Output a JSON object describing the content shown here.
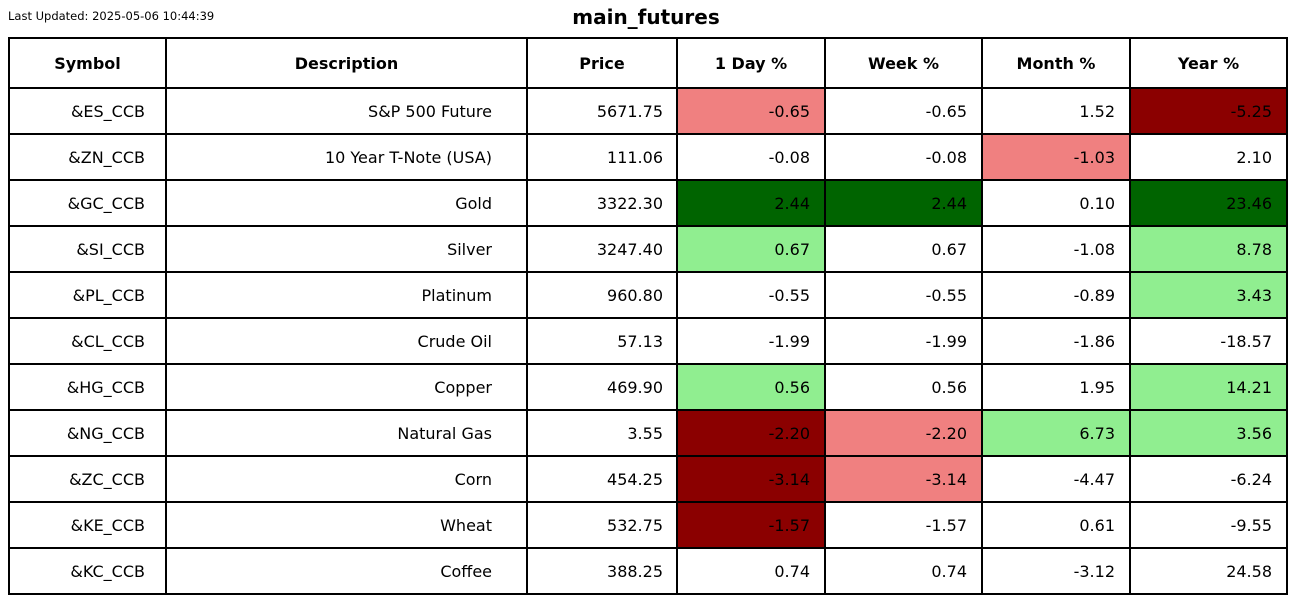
{
  "page": {
    "last_updated": "Last Updated: 2025-05-06 10:44:39"
  },
  "chart_data": {
    "type": "table",
    "title": "main_futures",
    "columns": [
      "Symbol",
      "Description",
      "Price",
      "1 Day %",
      "Week %",
      "Month %",
      "Year %"
    ],
    "cell_colors": {
      "positive_strong": "#006400",
      "positive_mild": "#90EE90",
      "negative_mild": "#F08080",
      "negative_strong": "#8B0000",
      "neutral": "#FFFFFF"
    },
    "rows": [
      {
        "symbol": "&ES_CCB",
        "description": "S&P 500 Future",
        "price": "5671.75",
        "day": {
          "value": "-0.65",
          "bg": "negative_mild"
        },
        "week": {
          "value": "-0.65",
          "bg": "neutral"
        },
        "month": {
          "value": "1.52",
          "bg": "neutral"
        },
        "year": {
          "value": "-5.25",
          "bg": "negative_strong"
        }
      },
      {
        "symbol": "&ZN_CCB",
        "description": "10 Year T-Note (USA)",
        "price": "111.06",
        "day": {
          "value": "-0.08",
          "bg": "neutral"
        },
        "week": {
          "value": "-0.08",
          "bg": "neutral"
        },
        "month": {
          "value": "-1.03",
          "bg": "negative_mild"
        },
        "year": {
          "value": "2.10",
          "bg": "neutral"
        }
      },
      {
        "symbol": "&GC_CCB",
        "description": "Gold",
        "price": "3322.30",
        "day": {
          "value": "2.44",
          "bg": "positive_strong"
        },
        "week": {
          "value": "2.44",
          "bg": "positive_strong"
        },
        "month": {
          "value": "0.10",
          "bg": "neutral"
        },
        "year": {
          "value": "23.46",
          "bg": "positive_strong"
        }
      },
      {
        "symbol": "&SI_CCB",
        "description": "Silver",
        "price": "3247.40",
        "day": {
          "value": "0.67",
          "bg": "positive_mild"
        },
        "week": {
          "value": "0.67",
          "bg": "neutral"
        },
        "month": {
          "value": "-1.08",
          "bg": "neutral"
        },
        "year": {
          "value": "8.78",
          "bg": "positive_mild"
        }
      },
      {
        "symbol": "&PL_CCB",
        "description": "Platinum",
        "price": "960.80",
        "day": {
          "value": "-0.55",
          "bg": "neutral"
        },
        "week": {
          "value": "-0.55",
          "bg": "neutral"
        },
        "month": {
          "value": "-0.89",
          "bg": "neutral"
        },
        "year": {
          "value": "3.43",
          "bg": "positive_mild"
        }
      },
      {
        "symbol": "&CL_CCB",
        "description": "Crude Oil",
        "price": "57.13",
        "day": {
          "value": "-1.99",
          "bg": "neutral"
        },
        "week": {
          "value": "-1.99",
          "bg": "neutral"
        },
        "month": {
          "value": "-1.86",
          "bg": "neutral"
        },
        "year": {
          "value": "-18.57",
          "bg": "neutral"
        }
      },
      {
        "symbol": "&HG_CCB",
        "description": "Copper",
        "price": "469.90",
        "day": {
          "value": "0.56",
          "bg": "positive_mild"
        },
        "week": {
          "value": "0.56",
          "bg": "neutral"
        },
        "month": {
          "value": "1.95",
          "bg": "neutral"
        },
        "year": {
          "value": "14.21",
          "bg": "positive_mild"
        }
      },
      {
        "symbol": "&NG_CCB",
        "description": "Natural Gas",
        "price": "3.55",
        "day": {
          "value": "-2.20",
          "bg": "negative_strong"
        },
        "week": {
          "value": "-2.20",
          "bg": "negative_mild"
        },
        "month": {
          "value": "6.73",
          "bg": "positive_mild"
        },
        "year": {
          "value": "3.56",
          "bg": "positive_mild"
        }
      },
      {
        "symbol": "&ZC_CCB",
        "description": "Corn",
        "price": "454.25",
        "day": {
          "value": "-3.14",
          "bg": "negative_strong"
        },
        "week": {
          "value": "-3.14",
          "bg": "negative_mild"
        },
        "month": {
          "value": "-4.47",
          "bg": "neutral"
        },
        "year": {
          "value": "-6.24",
          "bg": "neutral"
        }
      },
      {
        "symbol": "&KE_CCB",
        "description": "Wheat",
        "price": "532.75",
        "day": {
          "value": "-1.57",
          "bg": "negative_strong"
        },
        "week": {
          "value": "-1.57",
          "bg": "neutral"
        },
        "month": {
          "value": "0.61",
          "bg": "neutral"
        },
        "year": {
          "value": "-9.55",
          "bg": "neutral"
        }
      },
      {
        "symbol": "&KC_CCB",
        "description": "Coffee",
        "price": "388.25",
        "day": {
          "value": "0.74",
          "bg": "neutral"
        },
        "week": {
          "value": "0.74",
          "bg": "neutral"
        },
        "month": {
          "value": "-3.12",
          "bg": "neutral"
        },
        "year": {
          "value": "24.58",
          "bg": "neutral"
        }
      }
    ]
  }
}
